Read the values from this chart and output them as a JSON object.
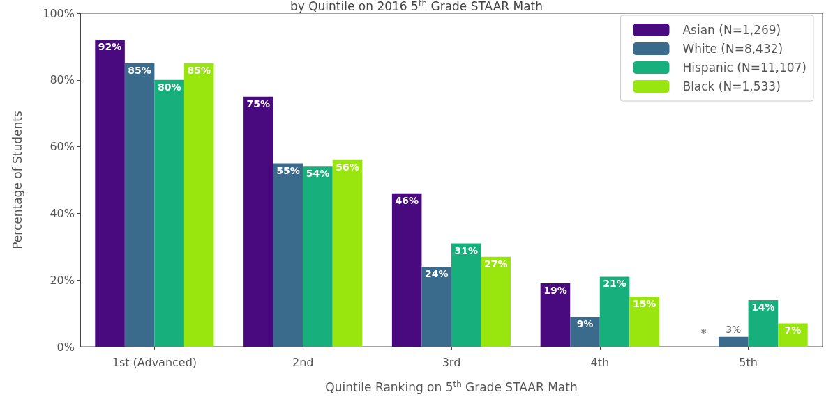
{
  "chart_data": {
    "type": "bar",
    "title": "by Quintile on 2016 5$^{th}$ Grade STAAR Math",
    "xlabel": "Quintile Ranking on 5$^{th}$ Grade STAAR Math",
    "ylabel": "Percentage of Students",
    "categories": [
      "1st (Advanced)",
      "2nd",
      "3rd",
      "4th",
      "5th"
    ],
    "series": [
      {
        "name": "Asian (N=1,269)",
        "color": "#4a0a7f",
        "values": [
          92,
          75,
          46,
          19,
          null
        ],
        "value_labels": [
          "92%",
          "75%",
          "46%",
          "19%",
          null
        ]
      },
      {
        "name": "White (N=8,432)",
        "color": "#3a6a8c",
        "values": [
          85,
          55,
          24,
          9,
          3
        ],
        "value_labels": [
          "85%",
          "55%",
          "24%",
          "9%",
          "3%"
        ]
      },
      {
        "name": "Hispanic (N=11,107)",
        "color": "#17b07c",
        "values": [
          80,
          54,
          31,
          21,
          14
        ],
        "value_labels": [
          "80%",
          "54%",
          "31%",
          "21%",
          "14%"
        ]
      },
      {
        "name": "Black (N=1,533)",
        "color": "#99e60f",
        "values": [
          85,
          56,
          27,
          15,
          7
        ],
        "value_labels": [
          "85%",
          "56%",
          "27%",
          "15%",
          "7%"
        ]
      }
    ],
    "annotations": [
      "*"
    ],
    "ylim": [
      0,
      100
    ],
    "yticks": [
      {
        "value": 0,
        "label": "0%"
      },
      {
        "value": 20,
        "label": "20%"
      },
      {
        "value": 40,
        "label": "40%"
      },
      {
        "value": 60,
        "label": "60%"
      },
      {
        "value": 80,
        "label": "80%"
      },
      {
        "value": 100,
        "label": "100%"
      }
    ],
    "grid": false,
    "legend": "top right"
  }
}
